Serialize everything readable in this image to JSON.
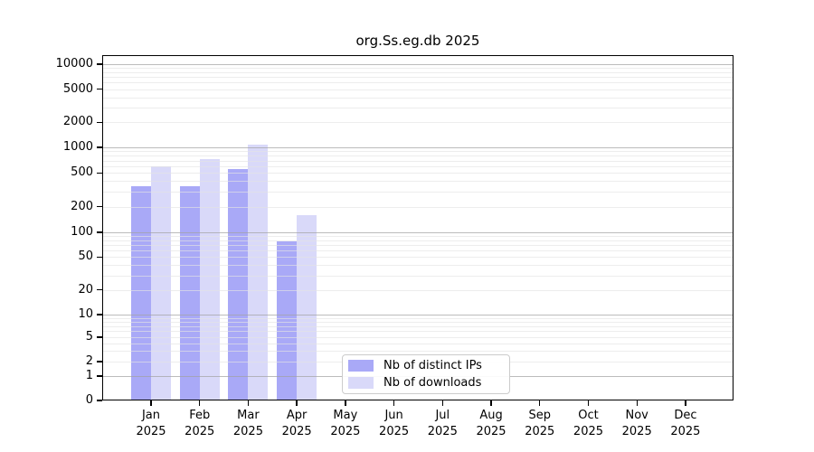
{
  "chart_data": {
    "type": "bar",
    "title": "org.Ss.eg.db 2025",
    "categories": [
      "Jan 2025",
      "Feb 2025",
      "Mar 2025",
      "Apr 2025",
      "May 2025",
      "Jun 2025",
      "Jul 2025",
      "Aug 2025",
      "Sep 2025",
      "Oct 2025",
      "Nov 2025",
      "Dec 2025"
    ],
    "series": [
      {
        "name": "Nb of distinct IPs",
        "color": "#a9a9f7",
        "values": [
          345,
          345,
          550,
          78,
          0,
          0,
          0,
          0,
          0,
          0,
          0,
          0
        ]
      },
      {
        "name": "Nb of downloads",
        "color": "#d9d9f9",
        "values": [
          600,
          730,
          1080,
          160,
          0,
          0,
          0,
          0,
          0,
          0,
          0,
          0
        ]
      }
    ],
    "xlabel": "",
    "ylabel": "",
    "yscale": "symlog",
    "ylim": [
      0,
      12500
    ],
    "yticks": [
      0,
      1,
      2,
      5,
      10,
      20,
      50,
      100,
      200,
      500,
      1000,
      2000,
      5000,
      10000
    ],
    "grid": "both",
    "legend_position": "lower center",
    "colors": {
      "axis": "#000000",
      "text": "#000000",
      "grid_major": "#b0b0b0",
      "grid_minor": "#ececec",
      "background": "#ffffff"
    }
  }
}
